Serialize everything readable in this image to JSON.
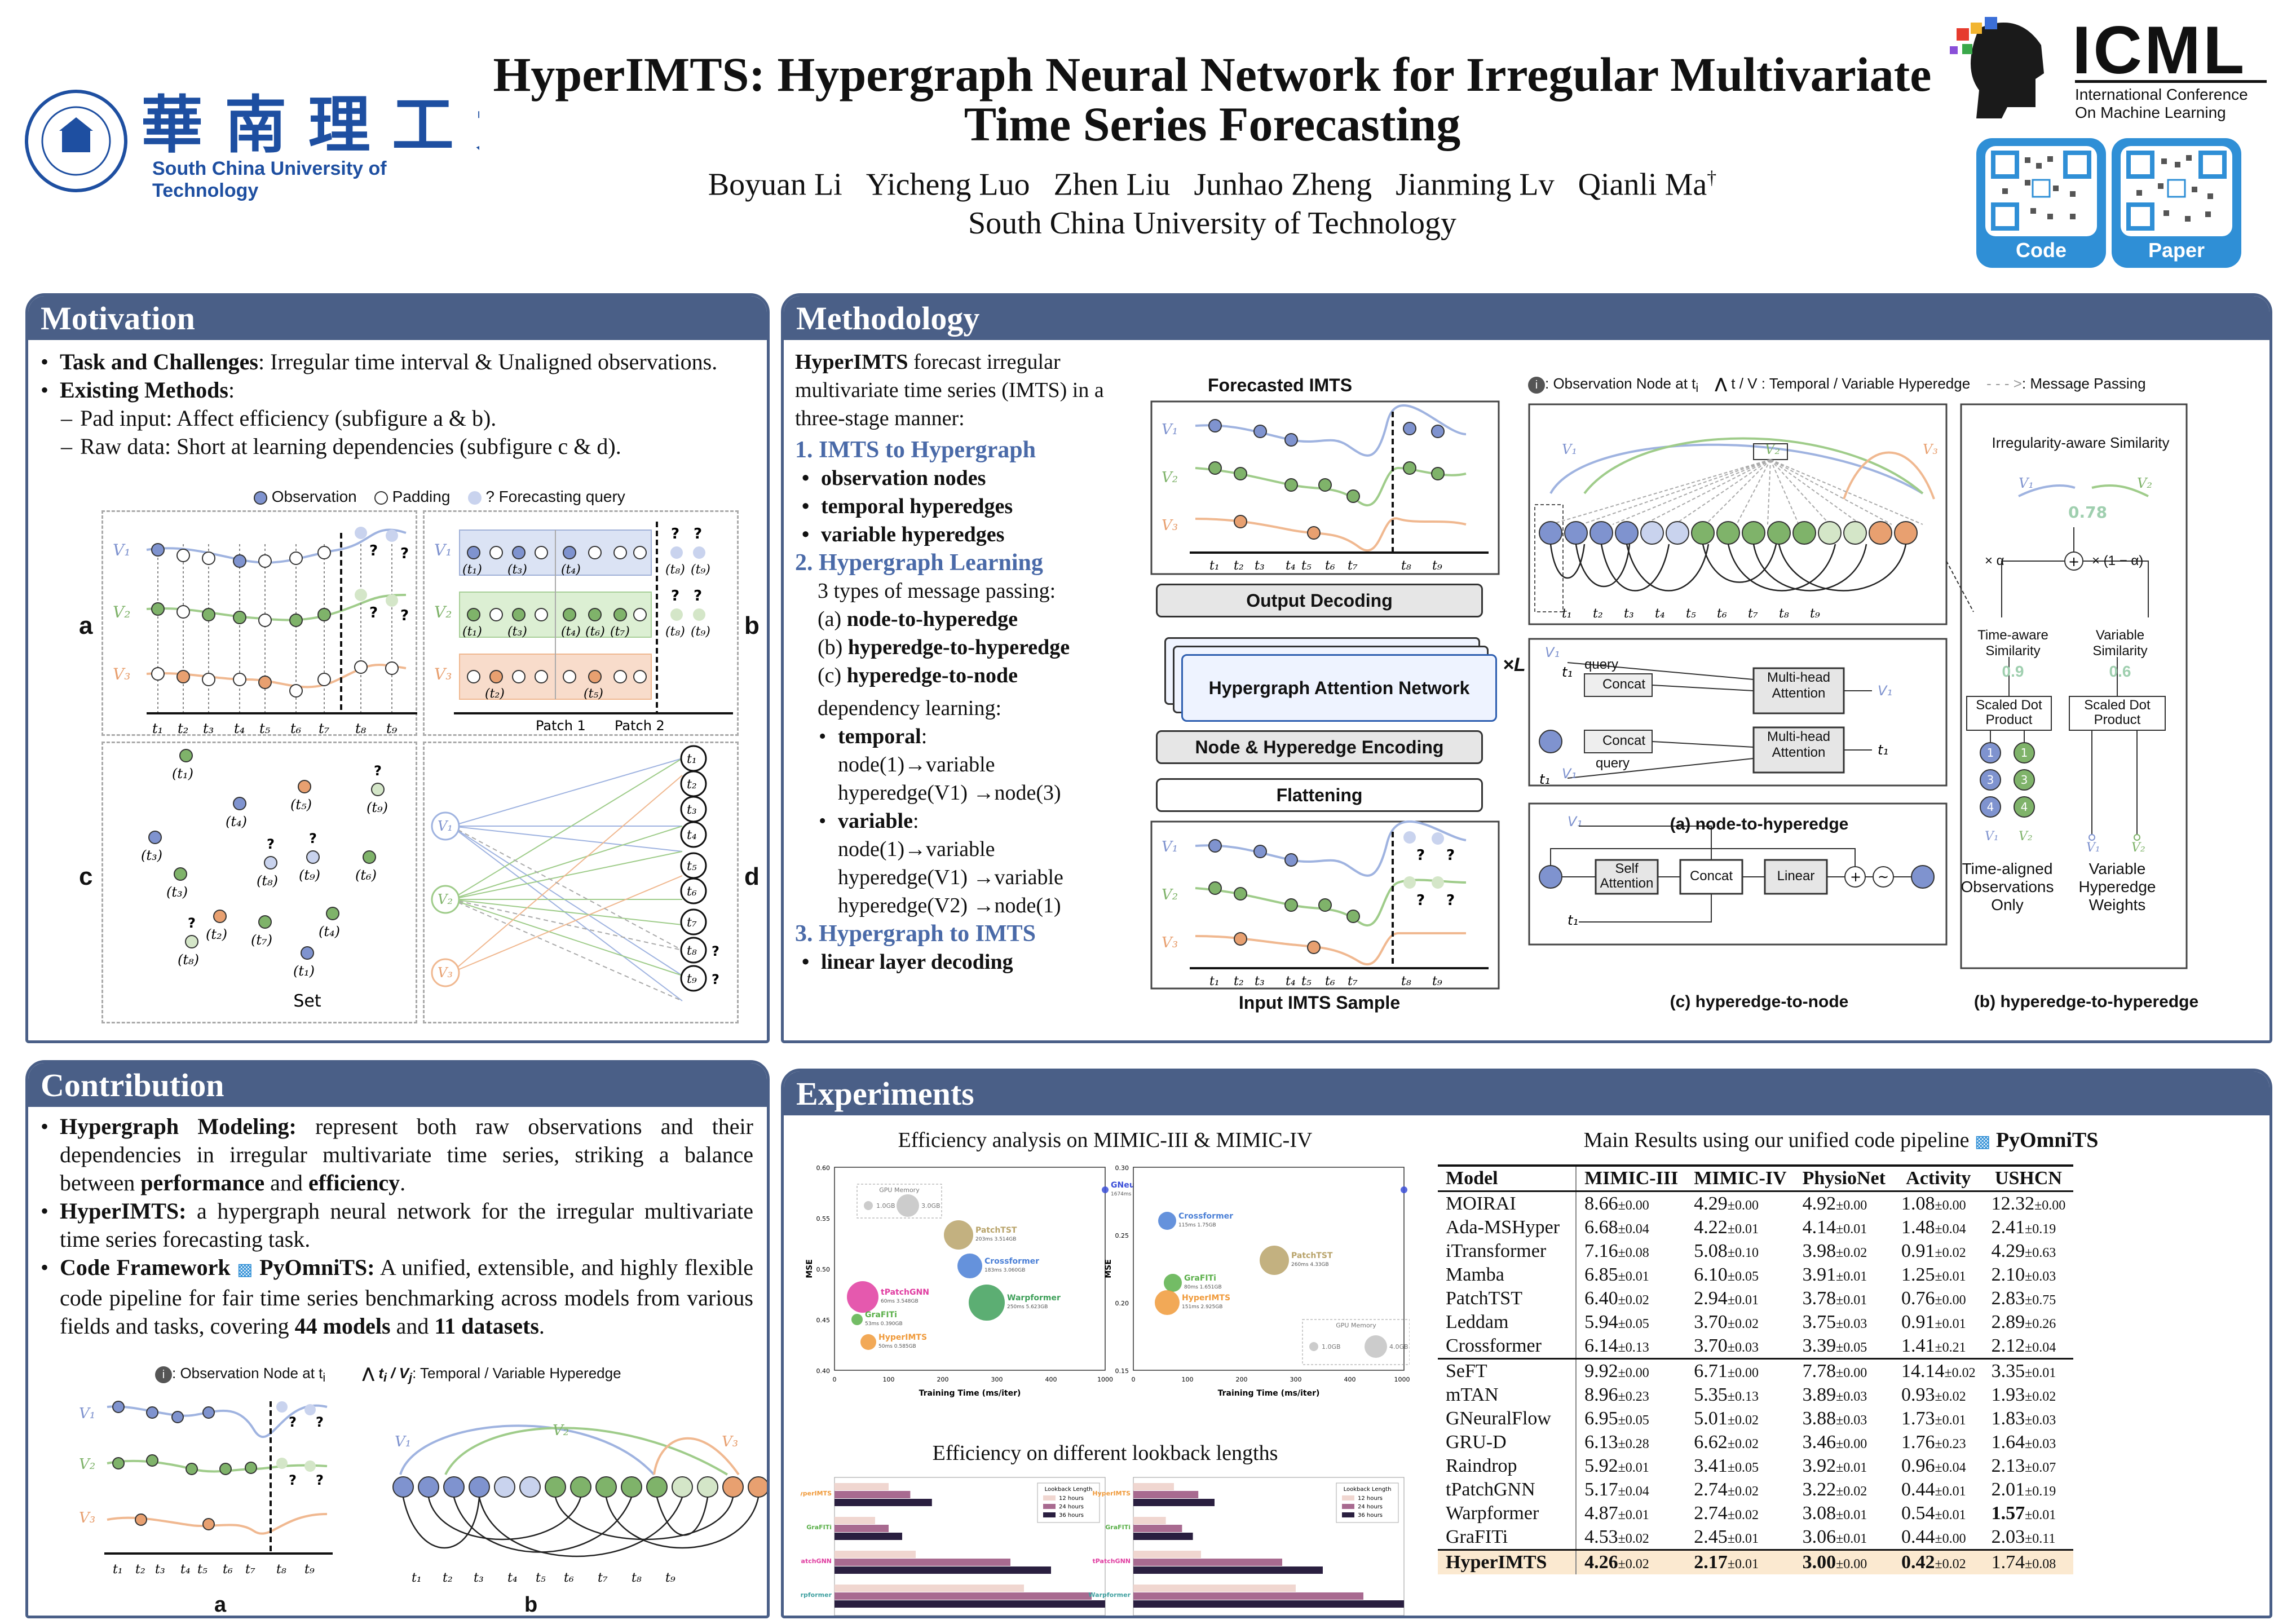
{
  "header": {
    "logo_univ": "South China University of Technology",
    "title_line1": "HyperIMTS: Hypergraph Neural Network for Irregular Multivariate",
    "title_line2": "Time Series Forecasting",
    "authors": [
      "Boyuan Li",
      "Yicheng Luo",
      "Zhen Liu",
      "Junhao Zheng",
      "Jianming Lv",
      "Qianli Ma"
    ],
    "dagger": "†",
    "affiliation": "South China University of Technology",
    "conf_logo": "ICML",
    "conf_sub1": "International Conference",
    "conf_sub2": "On Machine Learning",
    "qr_code": "Code",
    "qr_paper": "Paper"
  },
  "motivation": {
    "heading": "Motivation",
    "b1_bold": "Task and Challenges",
    "b1_rest": ": Irregular time interval & Unaligned observations.",
    "b2_bold": "Existing Methods",
    "b2_rest": ":",
    "s1": "Pad input: Affect efficiency (subfigure a & b).",
    "s2": "Raw data: Short at learning dependencies (subfigure c & d).",
    "legend": [
      "Observation",
      "Padding",
      "? Forecasting query"
    ],
    "labels": {
      "a": "a",
      "b": "b",
      "c": "c",
      "d": "d",
      "set": "Set",
      "patch1": "Patch 1",
      "patch2": "Patch 2"
    },
    "vars": [
      "V1",
      "V2",
      "V3"
    ],
    "times": [
      "t1",
      "t2",
      "t3",
      "t4",
      "t5",
      "t6",
      "t7",
      "t8",
      "t9"
    ]
  },
  "contribution": {
    "heading": "Contribution",
    "c1_bold": "Hypergraph Modeling:",
    "c1_rest": " represent both raw observations and their dependencies in irregular multivariate time series, striking a balance between ",
    "c1_b2": "performance",
    "c1_and": " and ",
    "c1_b3": "efficiency",
    "c1_end": ".",
    "c2_bold": "HyperIMTS:",
    "c2_rest": " a hypergraph neural network for the irregular multivariate time series forecasting task.",
    "c3_bold": "Code Framework",
    "c3_pkg": "PyOmniTS:",
    "c3_rest": " A unified, extensible, and highly flexible code pipeline for fair time series benchmarking across models from various fields and tasks, covering ",
    "c3_b1": "44 models",
    "c3_and": " and ",
    "c3_b2": "11 datasets",
    "c3_end": ".",
    "legend_node": ": Observation Node at t",
    "legend_edge": ": Temporal / Variable Hyperedge",
    "label_a": "a",
    "label_b": "b"
  },
  "methodology": {
    "heading": "Methodology",
    "intro_bold": "HyperIMTS",
    "intro_rest": " forecast irregular multivariate time series (IMTS) in a three-stage manner:",
    "s1": "1. IMTS to Hypergraph",
    "s1_items": [
      "observation nodes",
      "temporal hyperedges",
      "variable hyperedges"
    ],
    "s2": "2. Hypergraph Learning",
    "s2_intro": "3 types of message passing:",
    "s2_items": [
      [
        "(a)",
        "node-to-hyperedge"
      ],
      [
        "(b)",
        "hyperedge-to-hyperedge"
      ],
      [
        "(c)",
        "hyperedge-to-node"
      ]
    ],
    "dep": "dependency learning:",
    "temporal": "temporal",
    "temporal_txt": [
      "node(1)→variable",
      "hyperedge(V1) →node(3)"
    ],
    "variable": "variable",
    "variable_txt": [
      "node(1)→variable",
      "hyperedge(V1)  →variable",
      "hyperedge(V2) →node(1)"
    ],
    "s3": "3. Hypergraph to IMTS",
    "s3_item": "linear layer decoding",
    "fig": {
      "forecasted": "Forecasted IMTS",
      "output": "Output Decoding",
      "han": "Hypergraph Attention Network",
      "xl": "×L",
      "nhe": "Node & Hyperedge Encoding",
      "flat": "Flattening",
      "input": "Input IMTS Sample",
      "legend_obs": ": Observation Node at t",
      "legend_edge": "t / V : Temporal / Variable Hyperedge",
      "legend_msg": ": Message Passing",
      "irr": "Irregularity-aware Similarity",
      "irr_val": "0.78",
      "alpha": "× α",
      "one_alpha": "× (1 − α)",
      "time_sim": "Time-aware Similarity",
      "time_val": "0.9",
      "var_sim": "Variable Similarity",
      "var_val": "0.6",
      "sdp": "Scaled Dot Product",
      "taoo": "Time-aligned Observations Only",
      "vhw": "Variable Hyperedge Weights",
      "cap_a": "(a) node-to-hyperedge",
      "cap_b": "(b) hyperedge-to-hyperedge",
      "cap_c": "(c) hyperedge-to-node",
      "query": "query",
      "concat": "Concat",
      "mha": "Multi-head Attention",
      "self_att": "Self Attention",
      "linear": "Linear"
    }
  },
  "experiments": {
    "heading": "Experiments",
    "eff_title": "Efficiency analysis on MIMIC-III & MIMIC-IV",
    "look_title": "Efficiency on different lookback lengths",
    "main_title": "Main Results using our unified code pipeline",
    "main_pkg": "PyOmniTS",
    "columns": [
      "Model",
      "MIMIC-III",
      "MIMIC-IV",
      "PhysioNet",
      "Activity",
      "USHCN"
    ],
    "group1": [
      [
        "MOIRAI",
        "8.66",
        "±0.00",
        "4.29",
        "±0.00",
        "4.92",
        "±0.00",
        "1.08",
        "±0.00",
        "12.32",
        "±0.00"
      ],
      [
        "Ada-MSHyper",
        "6.68",
        "±0.04",
        "4.22",
        "±0.01",
        "4.14",
        "±0.01",
        "1.48",
        "±0.04",
        "2.41",
        "±0.19"
      ],
      [
        "iTransformer",
        "7.16",
        "±0.08",
        "5.08",
        "±0.10",
        "3.98",
        "±0.02",
        "0.91",
        "±0.02",
        "4.29",
        "±0.63"
      ],
      [
        "Mamba",
        "6.85",
        "±0.01",
        "6.10",
        "±0.05",
        "3.91",
        "±0.01",
        "1.25",
        "±0.01",
        "2.10",
        "±0.03"
      ],
      [
        "PatchTST",
        "6.40",
        "±0.02",
        "2.94",
        "±0.01",
        "3.78",
        "±0.01",
        "0.76",
        "±0.00",
        "2.83",
        "±0.75"
      ],
      [
        "Leddam",
        "5.94",
        "±0.05",
        "3.70",
        "±0.02",
        "3.75",
        "±0.03",
        "0.91",
        "±0.01",
        "2.89",
        "±0.26"
      ],
      [
        "Crossformer",
        "6.14",
        "±0.13",
        "3.70",
        "±0.03",
        "3.39",
        "±0.05",
        "1.41",
        "±0.21",
        "2.12",
        "±0.04"
      ]
    ],
    "group2": [
      [
        "SeFT",
        "9.92",
        "±0.00",
        "6.71",
        "±0.00",
        "7.78",
        "±0.00",
        "14.14",
        "±0.02",
        "3.35",
        "±0.01"
      ],
      [
        "mTAN",
        "8.96",
        "±0.23",
        "5.35",
        "±0.13",
        "3.89",
        "±0.03",
        "0.93",
        "±0.02",
        "1.93",
        "±0.02"
      ],
      [
        "GNeuralFlow",
        "6.95",
        "±0.05",
        "5.01",
        "±0.02",
        "3.88",
        "±0.03",
        "1.73",
        "±0.01",
        "1.83",
        "±0.03"
      ],
      [
        "GRU-D",
        "6.13",
        "±0.28",
        "6.62",
        "±0.02",
        "3.46",
        "±0.00",
        "1.76",
        "±0.23",
        "1.64",
        "±0.03"
      ],
      [
        "Raindrop",
        "5.92",
        "±0.01",
        "3.41",
        "±0.05",
        "3.92",
        "±0.01",
        "0.96",
        "±0.04",
        "2.13",
        "±0.07"
      ],
      [
        "tPatchGNN",
        "5.17",
        "±0.04",
        "2.74",
        "±0.02",
        "3.22",
        "±0.02",
        "0.44",
        "±0.01",
        "2.01",
        "±0.19"
      ],
      [
        "Warpformer",
        "4.87",
        "±0.01",
        "2.74",
        "±0.02",
        "3.08",
        "±0.01",
        "0.54",
        "±0.01",
        "1.57",
        "±0.01"
      ],
      [
        "GraFITi",
        "4.53",
        "±0.02",
        "2.45",
        "±0.01",
        "3.06",
        "±0.01",
        "0.44",
        "±0.00",
        "2.03",
        "±0.11"
      ]
    ],
    "ours": [
      "HyperIMTS",
      "4.26",
      "±0.02",
      "2.17",
      "±0.01",
      "3.00",
      "±0.00",
      "0.42",
      "±0.02",
      "1.74",
      "±0.08"
    ],
    "scatter1": {
      "xlabel": "Training Time (ms/iter)",
      "ylabel": "MSE",
      "yticks": [
        "0.60",
        "0.55",
        "0.50",
        "0.45",
        "0.40"
      ],
      "xticks": [
        "0",
        "100",
        "200",
        "300",
        "400",
        "1000"
      ],
      "mem": "GPU Memory",
      "mem_a": "1.0GB",
      "mem_b": "3.0GB",
      "points": [
        {
          "name": "GNeuralFlow",
          "info": "1674ms 0.038GB",
          "color": "#3a4ed8"
        },
        {
          "name": "PatchTST",
          "info": "203ms 3.514GB",
          "color": "#b8a36a"
        },
        {
          "name": "Crossformer",
          "info": "183ms 3.060GB",
          "color": "#4a7fd6"
        },
        {
          "name": "tPatchGNN",
          "info": "60ms 3.548GB",
          "color": "#e03ca0"
        },
        {
          "name": "Warpformer",
          "info": "250ms 5.623GB",
          "color": "#3fa05a"
        },
        {
          "name": "GraFITi",
          "info": "53ms 0.390GB",
          "color": "#5bb04a"
        },
        {
          "name": "HyperIMTS",
          "info": "50ms 0.585GB",
          "color": "#f09a3a"
        }
      ]
    },
    "scatter2": {
      "xlabel": "Training Time (ms/iter)",
      "ylabel": "MSE",
      "yticks": [
        "0.30",
        "0.25",
        "0.20",
        "0.15"
      ],
      "xticks": [
        "0",
        "100",
        "200",
        "300",
        "400",
        "10000"
      ],
      "mem": "GPU Memory",
      "mem_a": "1.0GB",
      "mem_b": "4.0GB",
      "points": [
        {
          "name": "GNeuralFlow",
          "info": "1674ms 0.038GB",
          "color": "#3a4ed8"
        },
        {
          "name": "Crossformer",
          "info": "115ms 1.75GB",
          "color": "#4a7fd6"
        },
        {
          "name": "PatchTST",
          "info": "260ms 4.33GB",
          "color": "#b8a36a"
        },
        {
          "name": "GraFITi",
          "info": "80ms 1.651GB",
          "color": "#5bb04a"
        },
        {
          "name": "HyperIMTS",
          "info": "151ms 2.925GB",
          "color": "#f09a3a"
        }
      ]
    },
    "bars": {
      "legend_title": "Lookback Length",
      "legend": [
        "12 hours",
        "24 hours",
        "36 hours"
      ],
      "models": [
        "HyperIMTS",
        "GraFITi",
        "tPatchGNN",
        "Warpformer"
      ],
      "model_colors": [
        "#f09a3a",
        "#5bb04a",
        "#e03ca0",
        "#3fa0a0"
      ],
      "series_colors": [
        "#f0d6d0",
        "#a86a90",
        "#2a1f40"
      ]
    }
  }
}
